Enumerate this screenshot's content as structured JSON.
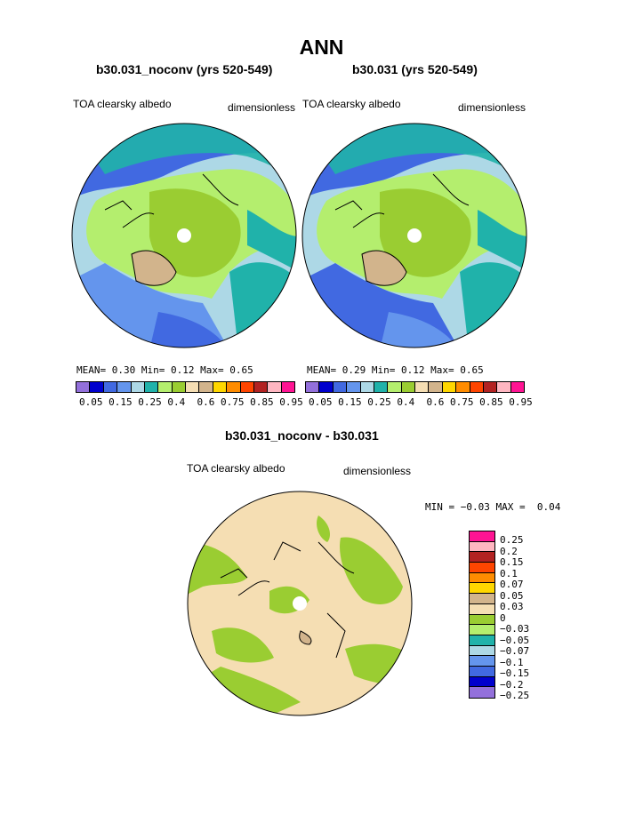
{
  "title": "ANN",
  "colors": {
    "ocean_polar": "#ffffff",
    "coast": "#000000",
    "abs_palette": [
      "#9370DB",
      "#0000CD",
      "#4169E1",
      "#6495ED",
      "#ADD8E6",
      "#20B2AA",
      "#B4EE6E",
      "#9ACD32",
      "#F5DEB3",
      "#D2B48C",
      "#FFD700",
      "#FF8C00",
      "#FF4500",
      "#B22222",
      "#FFB6C1",
      "#FF1493"
    ],
    "diff_palette": [
      "#FF1493",
      "#FFB6C1",
      "#B22222",
      "#FF4500",
      "#FF8C00",
      "#FFD700",
      "#D2B48C",
      "#F5DEB3",
      "#9ACD32",
      "#B4EE6E",
      "#20B2AA",
      "#ADD8E6",
      "#6495ED",
      "#4169E1",
      "#0000CD",
      "#9370DB"
    ]
  },
  "panels": [
    {
      "title": "b30.031_noconv (yrs 520-549)",
      "variable": "TOA clearsky albedo",
      "units": "dimensionless",
      "stats": {
        "mean_label": "MEAN=",
        "mean": "0.30",
        "min_label": "Min=",
        "min": "0.12",
        "max_label": "Max=",
        "max": "0.65"
      }
    },
    {
      "title": "b30.031 (yrs 520-549)",
      "variable": "TOA clearsky albedo",
      "units": "dimensionless",
      "stats": {
        "mean_label": "MEAN=",
        "mean": "0.29",
        "min_label": "Min=",
        "min": "0.12",
        "max_label": "Max=",
        "max": "0.65"
      }
    }
  ],
  "abs_colorbar_labels": [
    "0.05",
    "0.15",
    "0.25",
    "0.4",
    "0.6",
    "0.75",
    "0.85",
    "0.95"
  ],
  "difference": {
    "title": "b30.031_noconv - b30.031",
    "variable": "TOA clearsky albedo",
    "units": "dimensionless",
    "min_label": "MIN =",
    "min": "−0.03",
    "max_label": "MAX =",
    "max": "0.04",
    "colorbar_labels": [
      "0.25",
      "0.2",
      "0.15",
      "0.1",
      "0.07",
      "0.05",
      "0.03",
      "0",
      "−0.03",
      "−0.05",
      "−0.07",
      "−0.1",
      "−0.15",
      "−0.2",
      "−0.25"
    ]
  }
}
